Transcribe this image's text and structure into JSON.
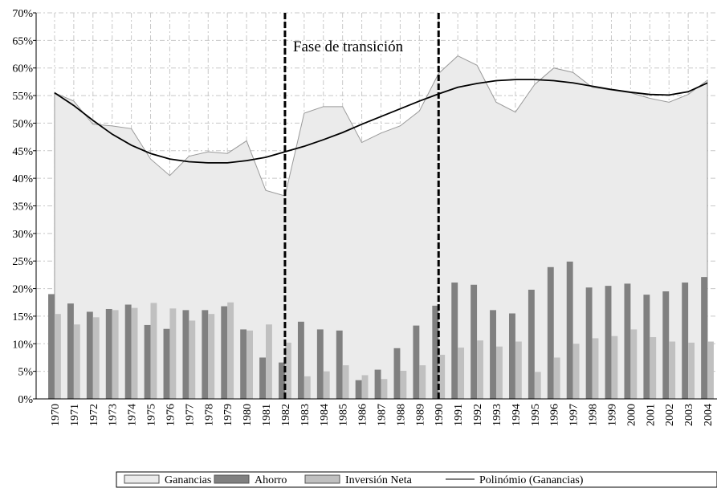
{
  "chart_data": {
    "type": "combo",
    "categories": [
      "1970",
      "1971",
      "1972",
      "1973",
      "1974",
      "1975",
      "1976",
      "1977",
      "1978",
      "1979",
      "1980",
      "1981",
      "1982",
      "1983",
      "1984",
      "1985",
      "1986",
      "1987",
      "1988",
      "1989",
      "1990",
      "1991",
      "1992",
      "1993",
      "1994",
      "1995",
      "1996",
      "1997",
      "1998",
      "1999",
      "2000",
      "2001",
      "2002",
      "2003",
      "2004"
    ],
    "series": [
      {
        "name": "Ganancias",
        "type": "area",
        "color": "#ebebeb",
        "values": [
          55.5,
          54,
          49.8,
          49.5,
          49,
          43.5,
          40.5,
          44,
          44.8,
          44.5,
          46.8,
          37.8,
          36.8,
          51.8,
          53,
          53,
          46.5,
          48.2,
          49.5,
          52.2,
          59,
          62.2,
          60.5,
          53.8,
          52,
          57,
          60,
          59.2,
          56.5,
          56,
          55.5,
          54.5,
          53.8,
          55.2,
          57.8
        ]
      },
      {
        "name": "Ahorro",
        "type": "bar",
        "color": "#808080",
        "values": [
          19,
          17.3,
          15.8,
          16.3,
          17.1,
          13.4,
          12.7,
          16.1,
          16.1,
          16.8,
          12.6,
          7.5,
          6.6,
          14,
          12.6,
          12.4,
          3.4,
          5.3,
          9.2,
          13.3,
          16.9,
          21.1,
          20.7,
          16.1,
          15.5,
          19.8,
          23.9,
          24.9,
          20.2,
          20.5,
          20.9,
          18.9,
          19.5,
          21.1,
          22.1
        ]
      },
      {
        "name": "Inversión Neta",
        "type": "bar",
        "color": "#c0c0c0",
        "values": [
          15.4,
          13.5,
          14.8,
          16.1,
          16.5,
          17.4,
          16.4,
          14.2,
          15.4,
          17.5,
          12.4,
          13.5,
          10.2,
          4.1,
          5,
          6.1,
          4.3,
          3.6,
          5.1,
          6.1,
          8,
          9.3,
          10.6,
          9.5,
          10.4,
          4.9,
          7.5,
          10,
          11,
          11.4,
          12.6,
          11.2,
          10.4,
          10.2,
          10.4
        ]
      },
      {
        "name": "Polinómio (Ganancias)",
        "type": "line",
        "color": "#000000",
        "values": [
          55.5,
          53.2,
          50.5,
          48,
          46,
          44.5,
          43.5,
          43,
          42.8,
          42.8,
          43.2,
          43.8,
          44.8,
          45.8,
          47,
          48.3,
          49.8,
          51.2,
          52.6,
          54,
          55.3,
          56.5,
          57.2,
          57.7,
          57.9,
          57.9,
          57.7,
          57.3,
          56.7,
          56.1,
          55.6,
          55.2,
          55.1,
          55.7,
          57.3
        ]
      }
    ],
    "ylim": [
      0,
      70
    ],
    "yticks": [
      {
        "value": 0,
        "label": "0%"
      },
      {
        "value": 5,
        "label": "5%"
      },
      {
        "value": 10,
        "label": "10%"
      },
      {
        "value": 15,
        "label": "15%"
      },
      {
        "value": 20,
        "label": "20%"
      },
      {
        "value": 25,
        "label": "25%"
      },
      {
        "value": 30,
        "label": "30%"
      },
      {
        "value": 35,
        "label": "35%"
      },
      {
        "value": 40,
        "label": "40%"
      },
      {
        "value": 45,
        "label": "45%"
      },
      {
        "value": 50,
        "label": "50%"
      },
      {
        "value": 55,
        "label": "55%"
      },
      {
        "value": 60,
        "label": "60%"
      },
      {
        "value": 65,
        "label": "65%"
      },
      {
        "value": 70,
        "label": "70%"
      }
    ],
    "grid": true,
    "annotation": {
      "text": "Fase de transición",
      "from": "1982",
      "to": "1990"
    },
    "legend": "bottom"
  }
}
